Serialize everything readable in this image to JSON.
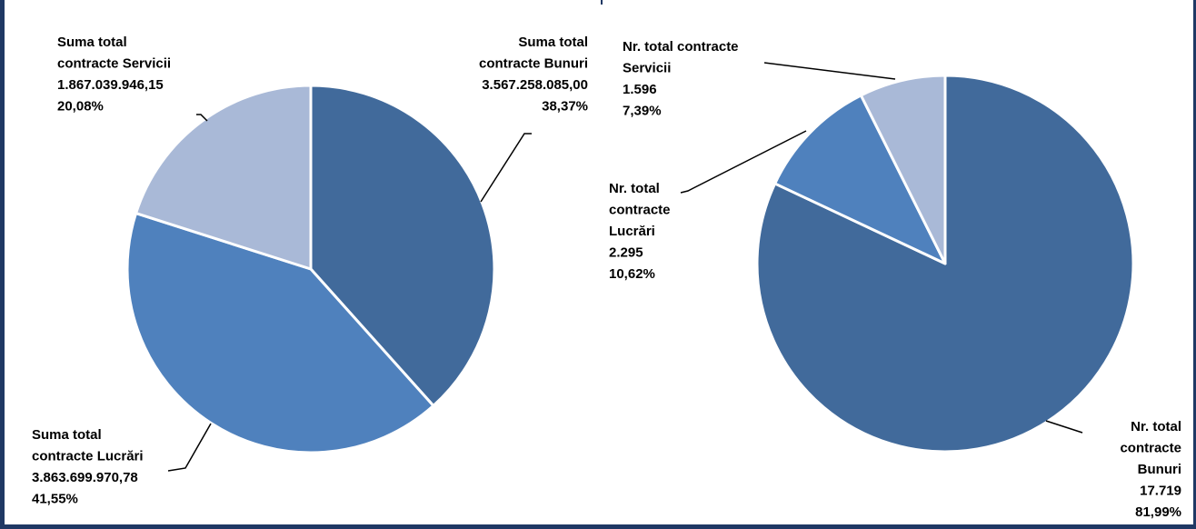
{
  "colors": {
    "bunuri": "#416a9b",
    "lucrari": "#4f81bd",
    "servicii": "#a9b9d7",
    "frame": "#1f3864"
  },
  "chart_data": [
    {
      "type": "pie",
      "categories": [
        "Bunuri",
        "Lucrări",
        "Servicii"
      ],
      "values": [
        3567258085.0,
        3863699970.78,
        1867039946.15
      ],
      "percentages": [
        38.37,
        41.55,
        20.08
      ],
      "labels": [
        {
          "lines": [
            "Suma total",
            "contracte Bunuri",
            "3.567.258.085,00",
            "38,37%"
          ]
        },
        {
          "lines": [
            "Suma total",
            "contracte Lucrări",
            "3.863.699.970,78",
            "41,55%"
          ]
        },
        {
          "lines": [
            "Suma total",
            "contracte Servicii",
            "1.867.039.946,15",
            "20,08%"
          ]
        }
      ]
    },
    {
      "type": "pie",
      "categories": [
        "Bunuri",
        "Lucrări",
        "Servicii"
      ],
      "values": [
        17719,
        2295,
        1596
      ],
      "percentages": [
        81.99,
        10.62,
        7.39
      ],
      "labels": [
        {
          "lines": [
            "Nr. total",
            "contracte",
            "Bunuri",
            "17.719",
            "81,99%"
          ]
        },
        {
          "lines": [
            "Nr. total",
            "contracte",
            "Lucrări",
            "2.295",
            "10,62%"
          ]
        },
        {
          "lines": [
            "Nr. total contracte",
            "Servicii",
            "1.596",
            "7,39%"
          ]
        }
      ]
    }
  ]
}
